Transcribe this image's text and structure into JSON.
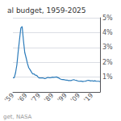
{
  "chart_data": {
    "type": "line",
    "title": "al budget, 1959-2025",
    "annotations": [
      "get, NASA"
    ],
    "x": [
      1959,
      1960,
      1961,
      1962,
      1963,
      1964,
      1965,
      1966,
      1967,
      1968,
      1969,
      1970,
      1971,
      1972,
      1973,
      1974,
      1975,
      1976,
      1977,
      1978,
      1979,
      1980,
      1981,
      1982,
      1983,
      1984,
      1985,
      1986,
      1987,
      1988,
      1989,
      1990,
      1991,
      1992,
      1993,
      1994,
      1995,
      1996,
      1997,
      1998,
      1999,
      2000,
      2001,
      2002,
      2003,
      2004,
      2005,
      2006,
      2007,
      2008,
      2009,
      2010,
      2011,
      2012,
      2013,
      2014,
      2015,
      2016,
      2017,
      2018,
      2019,
      2020,
      2021,
      2022,
      2023,
      2024,
      2025
    ],
    "values": [
      0.95,
      0.96,
      1.29,
      1.82,
      2.72,
      3.52,
      4.31,
      4.41,
      3.45,
      2.65,
      2.31,
      1.92,
      1.63,
      1.5,
      1.35,
      1.21,
      1.22,
      1.13,
      1.12,
      1.01,
      0.94,
      0.94,
      0.94,
      0.94,
      0.9,
      0.92,
      0.97,
      0.97,
      0.95,
      0.97,
      1.0,
      0.99,
      1.0,
      1.01,
      0.97,
      0.93,
      0.87,
      0.84,
      0.84,
      0.82,
      0.8,
      0.8,
      0.77,
      0.77,
      0.77,
      0.8,
      0.83,
      0.8,
      0.78,
      0.75,
      0.72,
      0.73,
      0.73,
      0.7,
      0.72,
      0.73,
      0.76,
      0.79,
      0.77,
      0.74,
      0.76,
      0.73,
      0.75,
      0.73,
      0.72,
      0.72,
      0.7
    ],
    "color": "#2b7bba",
    "xlim": [
      1959,
      2025
    ],
    "xticks": [
      {
        "value": 1959,
        "label": "'59"
      },
      {
        "value": 1969,
        "label": "'69"
      },
      {
        "value": 1979,
        "label": "'79"
      },
      {
        "value": 1989,
        "label": "'89"
      },
      {
        "value": 1999,
        "label": "'99"
      },
      {
        "value": 2009,
        "label": "'09"
      },
      {
        "value": 2019,
        "label": "'19"
      }
    ],
    "ylim": [
      0,
      5.0
    ],
    "yticks": [
      {
        "value": 1,
        "label": "1%"
      },
      {
        "value": 2,
        "label": "2%"
      },
      {
        "value": 3,
        "label": "3%"
      },
      {
        "value": 4,
        "label": "4%"
      },
      {
        "value": 5,
        "label": "5%"
      }
    ],
    "grid": true
  }
}
